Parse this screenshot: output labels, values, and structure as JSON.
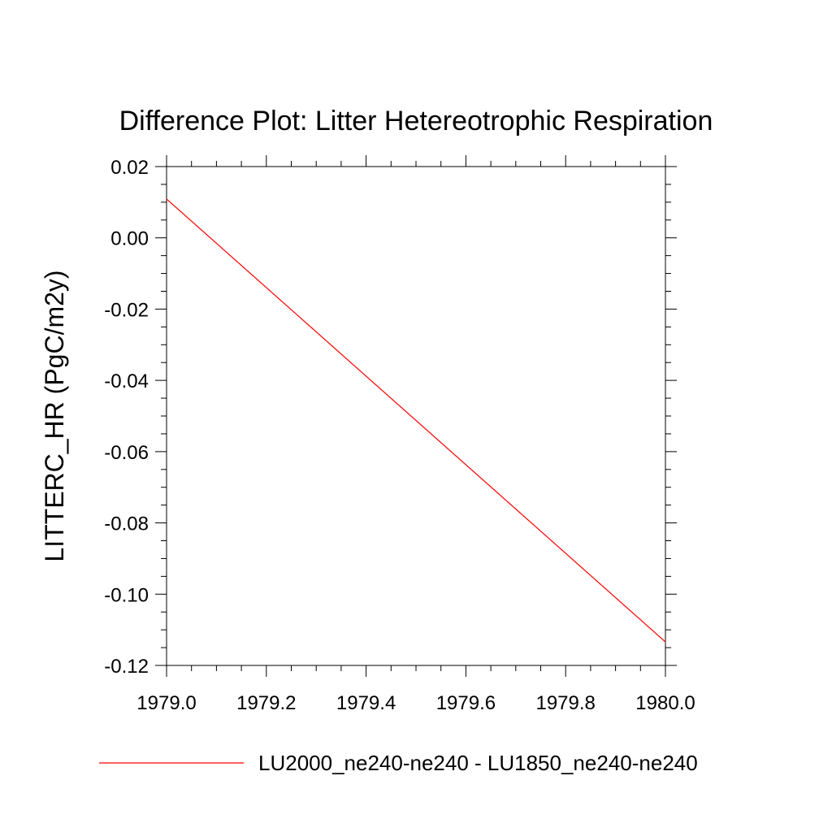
{
  "chart_data": {
    "type": "line",
    "title": "Difference Plot: Litter Hetereotrophic Respiration",
    "xlabel": "",
    "ylabel": "LITTERC_HR  (PgC/m2y)",
    "xlim": [
      1979.0,
      1980.0
    ],
    "ylim": [
      -0.12,
      0.02
    ],
    "xticks": [
      1979.0,
      1979.2,
      1979.4,
      1979.6,
      1979.8,
      1980.0
    ],
    "xtick_labels": [
      "1979.0",
      "1979.2",
      "1979.4",
      "1979.6",
      "1979.8",
      "1980.0"
    ],
    "yticks": [
      0.02,
      0.0,
      -0.02,
      -0.04,
      -0.06,
      -0.08,
      -0.1,
      -0.12
    ],
    "ytick_labels": [
      "0.02",
      "0.00",
      "-0.02",
      "-0.04",
      "-0.06",
      "-0.08",
      "-0.10",
      "-0.12"
    ],
    "grid": false,
    "legend_position": "bottom",
    "series": [
      {
        "name": "LU2000_ne240-ne240 - LU1850_ne240-ne240",
        "color": "#ff0000",
        "x": [
          1979.0,
          1980.0
        ],
        "y": [
          0.0109,
          -0.1134
        ]
      }
    ]
  }
}
